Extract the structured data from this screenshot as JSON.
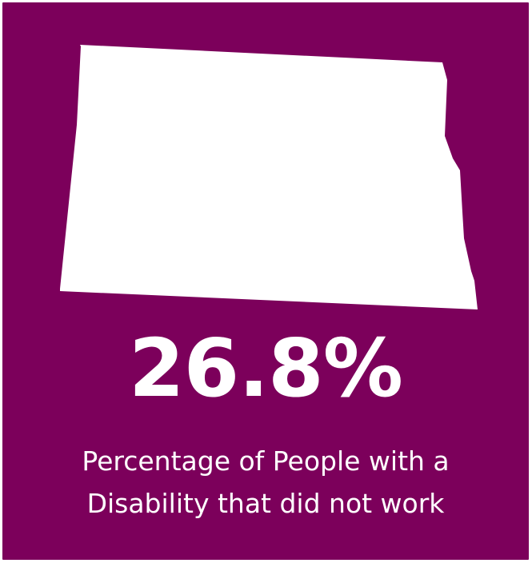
{
  "infographic": {
    "background_color": "#7c005b",
    "shape_color": "#ffffff",
    "map_icon": "north-dakota-state-outline-icon",
    "stat_value": "26.8%",
    "caption_line1": "Percentage of People with a",
    "caption_line2": "Disability that did not work"
  }
}
